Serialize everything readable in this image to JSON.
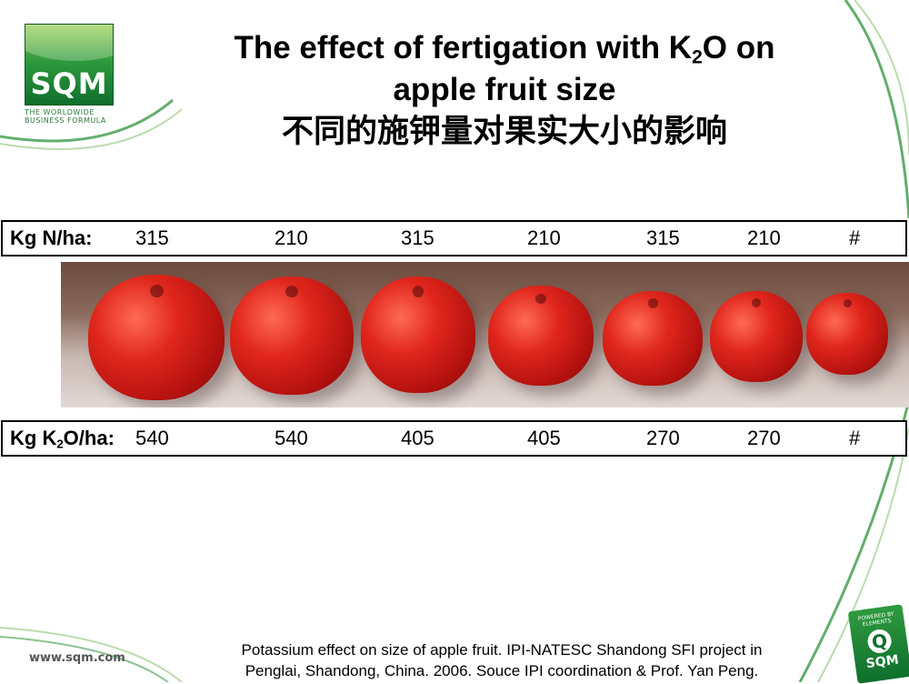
{
  "logo": {
    "brand": "SQM",
    "tagline": "The Worldwide\nBusiness Formula"
  },
  "title": {
    "line1_pre": "The effect of fertigation with K",
    "line1_sub": "2",
    "line1_post": "O on",
    "line2": "apple fruit size",
    "line_cn": "不同的施钾量对果实大小的影响"
  },
  "row_n": {
    "label": "Kg N/ha:",
    "values": [
      "315",
      "210",
      "315",
      "210",
      "315",
      "210",
      "#"
    ]
  },
  "row_k": {
    "label_pre": "Kg K",
    "label_sub": "2",
    "label_post": "O/ha:",
    "values": [
      "540",
      "540",
      "405",
      "405",
      "270",
      "270",
      "#"
    ]
  },
  "photo": {
    "apple_count": 7
  },
  "footer": {
    "line1": "Potassium effect on size of apple fruit. IPI-NATESC Shandong SFI project in",
    "line2": "Penglai, Shandong, China. 2006. Souce IPI coordination & Prof. Yan Peng."
  },
  "website": "www.sqm.com",
  "badge": {
    "top": "POWERED BY\nELEMENTS",
    "letter": "Q",
    "brand": "SQM"
  },
  "colors": {
    "brand_green": "#1f8a3a",
    "apple_red": "#d42a1e"
  }
}
